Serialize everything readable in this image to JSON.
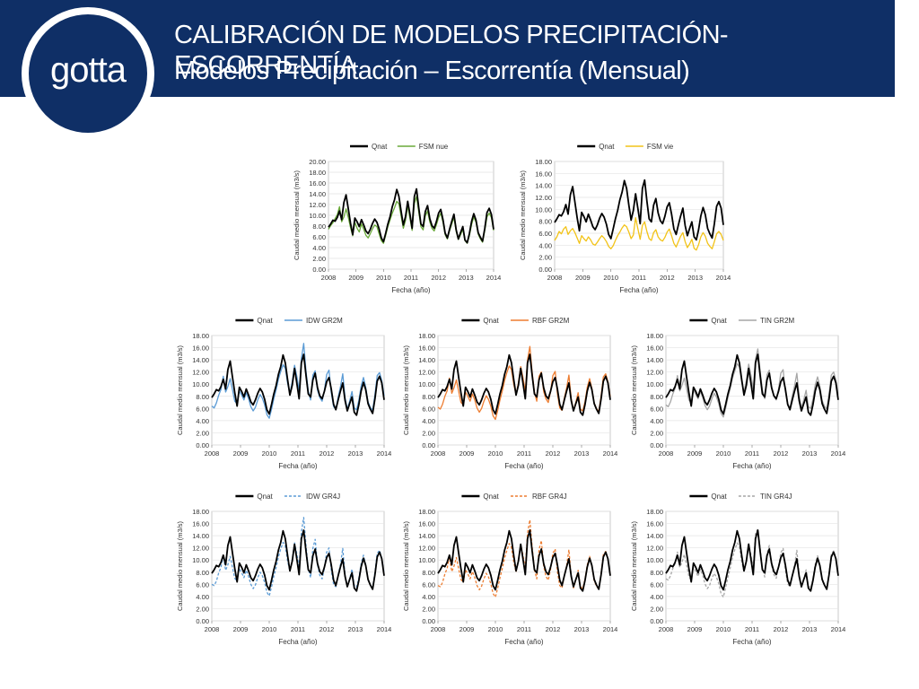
{
  "header": {
    "logo": "gotta",
    "title": "CALIBRACIÓN DE MODELOS PRECIPITACIÓN-ESCORRENTÍA",
    "subtitle": "Modelos Precipitación – Escorrentía (Mensual)"
  },
  "axes": {
    "xlabel": "Fecha (año)",
    "ylabel": "Caudal medio mensual (m3/s)",
    "x_ticks": [
      "2008",
      "2009",
      "2010",
      "2011",
      "2012",
      "2013",
      "2014"
    ]
  },
  "observed": {
    "name": "Qnat",
    "color": "#000000",
    "values": [
      7.8,
      8.4,
      9.1,
      8.9,
      9.6,
      10.8,
      9.2,
      12.4,
      13.8,
      11.2,
      8.6,
      6.4,
      9.5,
      8.8,
      7.9,
      9.2,
      8.2,
      7.1,
      6.6,
      7.4,
      8.5,
      9.3,
      8.7,
      7.5,
      5.8,
      5.1,
      6.7,
      8.4,
      9.8,
      11.6,
      12.9,
      14.8,
      13.5,
      10.7,
      8.2,
      9.8,
      12.6,
      10.2,
      7.6,
      13.5,
      14.9,
      11.4,
      8.4,
      7.9,
      10.7,
      11.8,
      9.4,
      8.1,
      7.6,
      8.8,
      10.4,
      11.1,
      9.2,
      6.7,
      5.8,
      7.4,
      8.9,
      10.2,
      7.3,
      5.6,
      6.8,
      7.9,
      5.4,
      4.9,
      6.6,
      8.9,
      10.3,
      9.1,
      6.8,
      5.9,
      5.2,
      7.6,
      10.5,
      11.3,
      10.2,
      7.4
    ]
  },
  "panels": [
    {
      "id": "fsm-nue",
      "legend_obs": "Qnat",
      "legend_sim": "FSM nue",
      "sim_color": "#6aaa3a",
      "dashed": false,
      "y_ticks": [
        "0.00",
        "2.00",
        "4.00",
        "6.00",
        "8.00",
        "10.00",
        "12.00",
        "14.00",
        "16.00",
        "18.00",
        "20.00"
      ],
      "chart_data": {
        "type": "line",
        "x_range": [
          2008,
          2014
        ],
        "ylim": [
          0,
          20
        ],
        "series": [
          {
            "name": "Qnat",
            "ref": "observed"
          },
          {
            "name": "FSM nue",
            "values": [
              7.4,
              8.1,
              8.6,
              9.4,
              10.1,
              11.6,
              8.8,
              9.7,
              11.2,
              9.6,
              7.8,
              6.2,
              8.7,
              7.6,
              6.9,
              8.4,
              7.4,
              6.3,
              5.8,
              6.6,
              7.5,
              8.2,
              7.9,
              6.6,
              5.3,
              4.8,
              6.3,
              7.9,
              9.2,
              10.4,
              11.4,
              12.6,
              12.1,
              9.8,
              7.6,
              9.1,
              11.8,
              9.4,
              7.2,
              12.2,
              13.5,
              10.6,
              7.9,
              7.3,
              9.9,
              10.8,
              8.8,
              7.6,
              7.1,
              8.2,
              9.6,
              10.4,
              8.7,
              6.4,
              5.6,
              7.1,
              8.4,
              9.6,
              7.0,
              5.5,
              6.4,
              7.4,
              5.3,
              4.8,
              6.2,
              8.3,
              9.7,
              8.7,
              6.5,
              5.6,
              5.0,
              7.2,
              9.7,
              10.4,
              9.6,
              7.2
            ]
          }
        ]
      }
    },
    {
      "id": "fsm-vie",
      "legend_obs": "Qnat",
      "legend_sim": "FSM vie",
      "sim_color": "#f2c318",
      "dashed": false,
      "y_ticks": [
        "0.00",
        "2.00",
        "4.00",
        "6.00",
        "8.00",
        "10.00",
        "12.00",
        "14.00",
        "16.00",
        "18.00"
      ],
      "chart_data": {
        "type": "line",
        "x_range": [
          2008,
          2014
        ],
        "ylim": [
          0,
          18
        ],
        "series": [
          {
            "name": "Qnat",
            "ref": "observed"
          },
          {
            "name": "FSM vie",
            "values": [
              4.8,
              5.4,
              6.3,
              5.9,
              6.7,
              7.1,
              5.8,
              6.4,
              6.8,
              6.1,
              5.2,
              4.3,
              5.6,
              5.1,
              4.7,
              5.4,
              4.9,
              4.2,
              4.0,
              4.5,
              5.1,
              5.6,
              5.2,
              4.6,
              3.8,
              3.4,
              3.9,
              4.8,
              5.6,
              6.2,
              6.9,
              7.4,
              7.1,
              6.2,
              5.1,
              5.7,
              8.6,
              6.8,
              5.0,
              7.3,
              7.9,
              6.3,
              5.1,
              4.8,
              6.1,
              6.6,
              5.4,
              4.9,
              4.7,
              5.3,
              6.2,
              6.7,
              5.6,
              4.3,
              3.7,
              4.6,
              5.5,
              6.1,
              4.6,
              3.6,
              4.2,
              5.0,
              3.5,
              3.2,
              4.1,
              5.4,
              6.1,
              5.5,
              4.3,
              3.8,
              3.4,
              4.6,
              5.9,
              6.3,
              5.8,
              4.8
            ]
          }
        ]
      }
    },
    {
      "id": "idw-gr2m",
      "legend_obs": "Qnat",
      "legend_sim": "IDW GR2M",
      "sim_color": "#5b9bd5",
      "dashed": false,
      "y_ticks": [
        "0.00",
        "2.00",
        "4.00",
        "6.00",
        "8.00",
        "10.00",
        "12.00",
        "14.00",
        "16.00",
        "18.00"
      ],
      "chart_data": {
        "type": "line",
        "x_range": [
          2008,
          2014
        ],
        "ylim": [
          0,
          18
        ],
        "series": [
          {
            "name": "Qnat",
            "ref": "observed"
          },
          {
            "name": "IDW GR2M",
            "values": [
              6.4,
              6.1,
              6.9,
              8.2,
              9.1,
              11.3,
              8.7,
              9.6,
              10.9,
              9.1,
              7.2,
              6.8,
              8.9,
              8.2,
              7.4,
              8.6,
              7.6,
              6.3,
              5.6,
              6.2,
              7.4,
              8.3,
              7.7,
              6.6,
              5.0,
              4.4,
              5.9,
              7.6,
              9.1,
              10.8,
              12.1,
              13.2,
              12.6,
              10.1,
              8.5,
              10.4,
              13.1,
              11.3,
              9.0,
              14.2,
              16.7,
              12.1,
              8.9,
              7.4,
              11.5,
              12.2,
              9.0,
              7.8,
              7.2,
              8.9,
              11.6,
              12.3,
              8.6,
              6.3,
              5.9,
              7.9,
              9.6,
              11.7,
              7.8,
              5.9,
              7.2,
              8.8,
              6.1,
              5.8,
              7.3,
              9.7,
              11.1,
              9.5,
              7.1,
              6.2,
              5.7,
              8.3,
              11.4,
              11.9,
              10.6,
              8.1
            ]
          }
        ]
      }
    },
    {
      "id": "rbf-gr2m",
      "legend_obs": "Qnat",
      "legend_sim": "RBF GR2M",
      "sim_color": "#ed7d31",
      "dashed": false,
      "y_ticks": [
        "0.00",
        "2.00",
        "4.00",
        "6.00",
        "8.00",
        "10.00",
        "12.00",
        "14.00",
        "16.00",
        "18.00"
      ],
      "chart_data": {
        "type": "line",
        "x_range": [
          2008,
          2014
        ],
        "ylim": [
          0,
          18
        ],
        "series": [
          {
            "name": "Qnat",
            "ref": "observed"
          },
          {
            "name": "RBF GR2M",
            "values": [
              6.2,
              5.9,
              6.7,
              8.0,
              8.9,
              11.0,
              8.5,
              9.4,
              10.7,
              8.9,
              7.0,
              6.6,
              8.7,
              8.0,
              7.2,
              8.4,
              7.4,
              6.1,
              5.4,
              6.0,
              7.2,
              8.1,
              7.5,
              6.4,
              4.8,
              4.2,
              5.7,
              7.4,
              8.9,
              10.6,
              11.9,
              13.0,
              12.4,
              9.9,
              8.3,
              10.2,
              12.9,
              11.1,
              8.8,
              14.0,
              16.2,
              11.9,
              8.7,
              7.2,
              11.3,
              12.0,
              8.8,
              7.6,
              7.0,
              8.7,
              11.4,
              12.1,
              8.4,
              6.1,
              5.7,
              7.7,
              9.4,
              11.5,
              7.6,
              5.7,
              7.0,
              8.6,
              5.9,
              5.6,
              7.1,
              9.5,
              10.9,
              9.3,
              6.9,
              6.0,
              5.5,
              8.1,
              11.2,
              11.7,
              10.4,
              7.9
            ]
          }
        ]
      }
    },
    {
      "id": "tin-gr2m",
      "legend_obs": "Qnat",
      "legend_sim": "TIN GR2M",
      "sim_color": "#a6a6a6",
      "dashed": false,
      "y_ticks": [
        "0.00",
        "2.00",
        "4.00",
        "6.00",
        "8.00",
        "10.00",
        "12.00",
        "14.00",
        "16.00",
        "18.00"
      ],
      "chart_data": {
        "type": "line",
        "x_range": [
          2008,
          2014
        ],
        "ylim": [
          0,
          18
        ],
        "series": [
          {
            "name": "Qnat",
            "ref": "observed"
          },
          {
            "name": "TIN GR2M",
            "values": [
              6.6,
              6.3,
              7.1,
              8.4,
              9.3,
              11.4,
              8.9,
              9.8,
              11.0,
              9.3,
              7.4,
              6.9,
              9.0,
              8.3,
              7.6,
              8.8,
              7.8,
              6.5,
              5.8,
              6.4,
              7.6,
              8.5,
              7.9,
              6.8,
              5.2,
              4.6,
              6.1,
              7.8,
              9.3,
              11.0,
              12.2,
              13.4,
              12.8,
              10.3,
              8.7,
              10.6,
              13.3,
              11.5,
              9.2,
              14.1,
              15.8,
              12.2,
              9.1,
              7.6,
              11.6,
              12.3,
              9.2,
              8.0,
              7.4,
              9.1,
              11.8,
              12.4,
              8.8,
              6.5,
              6.1,
              8.1,
              9.8,
              11.8,
              8.0,
              6.1,
              7.4,
              9.0,
              6.3,
              6.0,
              7.5,
              9.9,
              11.2,
              9.7,
              7.3,
              6.4,
              5.9,
              8.5,
              11.5,
              12.0,
              10.7,
              8.3
            ]
          }
        ]
      }
    },
    {
      "id": "idw-gr4j",
      "legend_obs": "Qnat",
      "legend_sim": "IDW GR4J",
      "sim_color": "#5b9bd5",
      "dashed": true,
      "y_ticks": [
        "0.00",
        "2.00",
        "4.00",
        "6.00",
        "8.00",
        "10.00",
        "12.00",
        "14.00",
        "16.00",
        "18.00"
      ],
      "chart_data": {
        "type": "line",
        "x_range": [
          2008,
          2014
        ],
        "ylim": [
          0,
          18
        ],
        "series": [
          {
            "name": "Qnat",
            "ref": "observed"
          },
          {
            "name": "IDW GR4J",
            "values": [
              6.0,
              5.8,
              6.5,
              7.9,
              8.8,
              10.7,
              8.3,
              9.2,
              10.6,
              8.8,
              7.0,
              6.5,
              8.6,
              7.9,
              7.1,
              8.3,
              7.3,
              6.0,
              5.3,
              5.9,
              7.1,
              8.0,
              7.4,
              6.3,
              4.7,
              4.1,
              5.6,
              7.3,
              8.8,
              10.5,
              11.8,
              12.9,
              12.3,
              9.8,
              8.2,
              10.1,
              12.8,
              11.0,
              8.7,
              14.6,
              17.0,
              12.3,
              8.6,
              7.1,
              11.9,
              13.4,
              9.2,
              7.5,
              6.9,
              8.6,
              11.3,
              12.0,
              8.3,
              6.0,
              5.6,
              7.6,
              9.3,
              11.9,
              7.5,
              5.6,
              6.9,
              8.5,
              5.8,
              5.5,
              7.0,
              9.4,
              10.8,
              9.2,
              6.8,
              5.9,
              5.4,
              8.0,
              11.1,
              11.6,
              10.3,
              7.8
            ]
          }
        ]
      }
    },
    {
      "id": "rbf-gr4j",
      "legend_obs": "Qnat",
      "legend_sim": "RBF GR4J",
      "sim_color": "#ed7d31",
      "dashed": true,
      "y_ticks": [
        "0.00",
        "2.00",
        "4.00",
        "6.00",
        "8.00",
        "10.00",
        "12.00",
        "14.00",
        "16.00",
        "18.00"
      ],
      "chart_data": {
        "type": "line",
        "x_range": [
          2008,
          2014
        ],
        "ylim": [
          0,
          18
        ],
        "series": [
          {
            "name": "Qnat",
            "ref": "observed"
          },
          {
            "name": "RBF GR4J",
            "values": [
              5.8,
              5.6,
              6.3,
              7.7,
              8.6,
              10.5,
              8.1,
              9.0,
              10.4,
              8.6,
              6.8,
              6.3,
              8.4,
              7.7,
              6.9,
              8.1,
              7.1,
              5.8,
              5.1,
              5.7,
              6.9,
              7.8,
              7.2,
              6.1,
              4.5,
              3.9,
              5.4,
              7.1,
              8.6,
              10.3,
              11.6,
              12.7,
              12.1,
              9.6,
              8.0,
              9.9,
              12.6,
              10.8,
              8.5,
              14.4,
              16.6,
              12.1,
              8.4,
              6.9,
              11.7,
              13.2,
              9.0,
              7.3,
              6.7,
              8.4,
              11.1,
              11.8,
              8.1,
              5.8,
              5.4,
              7.4,
              9.1,
              11.7,
              7.3,
              5.4,
              6.7,
              8.3,
              5.6,
              5.3,
              6.8,
              9.2,
              10.6,
              9.0,
              6.6,
              5.7,
              5.2,
              7.8,
              10.9,
              11.4,
              10.1,
              7.6
            ]
          }
        ]
      }
    },
    {
      "id": "tin-gr4j",
      "legend_obs": "Qnat",
      "legend_sim": "TIN GR4J",
      "sim_color": "#a6a6a6",
      "dashed": true,
      "y_ticks": [
        "0.00",
        "2.00",
        "4.00",
        "6.00",
        "8.00",
        "10.00",
        "12.00",
        "14.00",
        "16.00",
        "18.00"
      ],
      "chart_data": {
        "type": "line",
        "x_range": [
          2008,
          2014
        ],
        "ylim": [
          0,
          18
        ],
        "series": [
          {
            "name": "Qnat",
            "ref": "observed"
          },
          {
            "name": "TIN GR4J",
            "values": [
              6.9,
              6.7,
              7.4,
              8.6,
              9.4,
              11.3,
              8.8,
              9.6,
              10.9,
              9.2,
              7.3,
              6.7,
              8.8,
              8.1,
              7.3,
              8.5,
              7.5,
              6.1,
              5.3,
              5.8,
              7.0,
              7.8,
              7.2,
              6.1,
              4.5,
              3.9,
              5.5,
              7.2,
              8.7,
              10.4,
              11.7,
              12.8,
              12.2,
              9.7,
              8.1,
              10.0,
              12.7,
              10.9,
              8.6,
              14.3,
              15.1,
              12.0,
              8.7,
              7.2,
              11.1,
              12.4,
              9.1,
              7.6,
              7.0,
              8.7,
              11.2,
              11.9,
              8.4,
              6.1,
              5.6,
              7.5,
              9.2,
              11.6,
              7.4,
              5.5,
              6.8,
              8.4,
              5.7,
              5.4,
              6.9,
              9.3,
              10.7,
              9.1,
              6.7,
              5.8,
              5.3,
              7.9,
              11.0,
              11.5,
              10.2,
              7.7
            ]
          }
        ]
      }
    }
  ]
}
